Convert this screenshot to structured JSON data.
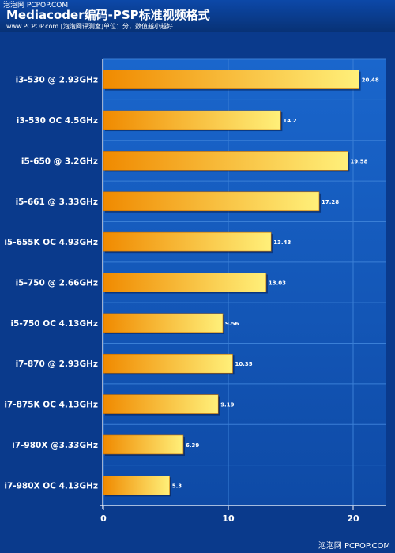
{
  "header": {
    "watermark_top": "泡泡网 PCPOP.COM",
    "title": "Mediacoder编码-PSP标准视频格式",
    "subtitle": "www.PCPOP.com [泡泡网评测室]单位：分，数值越小越好"
  },
  "footer": {
    "watermark": "泡泡网 PCPOP.COM"
  },
  "colors": {
    "background": "#0a3a8c",
    "plot_background": "#1256b8",
    "bar_start": "#f08a00",
    "bar_end": "#fff07a",
    "grid": "#3a7fd6"
  },
  "chart_data": {
    "type": "bar",
    "orientation": "horizontal",
    "title": "Mediacoder编码-PSP标准视频格式",
    "xlim": [
      0,
      22.5
    ],
    "x_ticks": [
      0,
      10,
      20
    ],
    "grid": true,
    "categories": [
      "i3-530 @ 2.93GHz",
      "i3-530 OC 4.5GHz",
      "i5-650 @ 3.2GHz",
      "i5-661 @ 3.33GHz",
      "i5-655K OC 4.93GHz",
      "i5-750 @ 2.66GHz",
      "i5-750 OC 4.13GHz",
      "i7-870 @ 2.93GHz",
      "i7-875K OC 4.13GHz",
      "i7-980X @3.33GHz",
      "i7-980X OC 4.13GHz"
    ],
    "values": [
      20.48,
      14.2,
      19.58,
      17.28,
      13.43,
      13.03,
      9.56,
      10.35,
      9.19,
      6.39,
      5.3
    ],
    "value_labels": [
      "20.48",
      "14.2",
      "19.58",
      "17.28",
      "13.43",
      "13.03",
      "9.56",
      "10.35",
      "9.19",
      "6.39",
      "5.3"
    ]
  }
}
